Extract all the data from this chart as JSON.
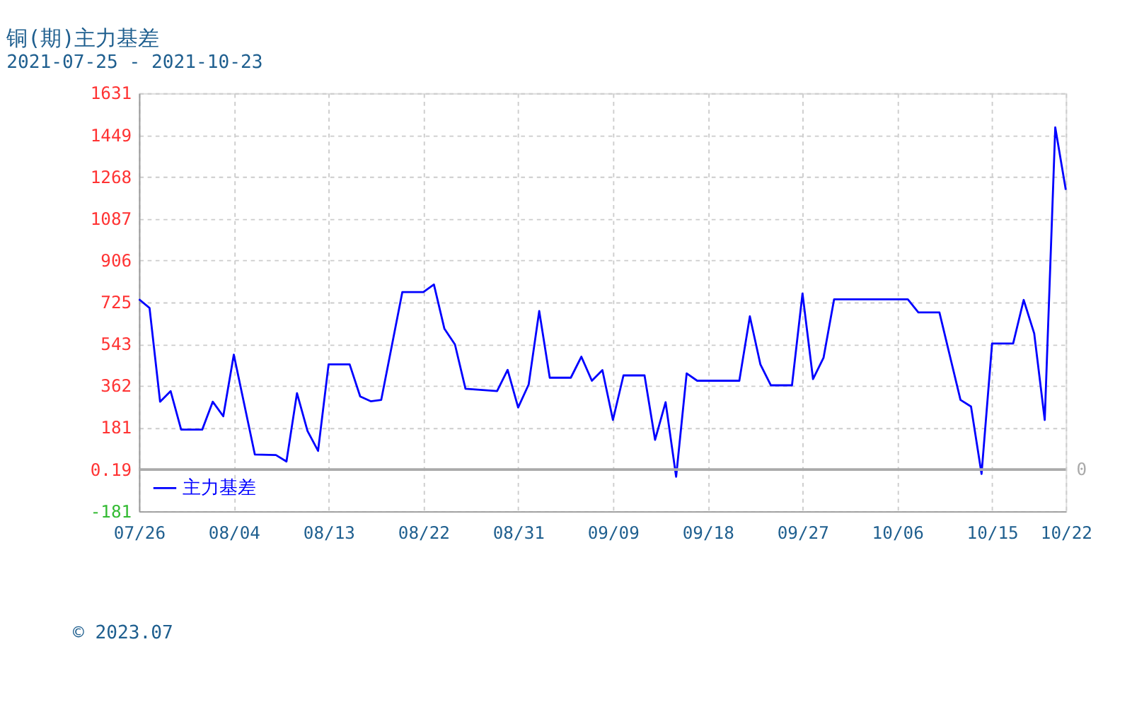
{
  "chart_data": {
    "type": "line",
    "title": "铜(期)主力基差",
    "subtitle": "2021-07-25 - 2021-10-23",
    "x": [
      "2021-07-26",
      "2021-07-27",
      "2021-07-28",
      "2021-07-29",
      "2021-07-30",
      "2021-08-01",
      "2021-08-02",
      "2021-08-03",
      "2021-08-04",
      "2021-08-06",
      "2021-08-08",
      "2021-08-09",
      "2021-08-10",
      "2021-08-11",
      "2021-08-12",
      "2021-08-13",
      "2021-08-15",
      "2021-08-16",
      "2021-08-17",
      "2021-08-18",
      "2021-08-20",
      "2021-08-22",
      "2021-08-23",
      "2021-08-24",
      "2021-08-25",
      "2021-08-26",
      "2021-08-29",
      "2021-08-30",
      "2021-08-31",
      "2021-09-01",
      "2021-09-02",
      "2021-09-03",
      "2021-09-05",
      "2021-09-06",
      "2021-09-07",
      "2021-09-08",
      "2021-09-09",
      "2021-09-10",
      "2021-09-12",
      "2021-09-13",
      "2021-09-14",
      "2021-09-15",
      "2021-09-16",
      "2021-09-17",
      "2021-09-21",
      "2021-09-22",
      "2021-09-23",
      "2021-09-24",
      "2021-09-26",
      "2021-09-27",
      "2021-09-28",
      "2021-09-29",
      "2021-09-30",
      "2021-10-07",
      "2021-10-08",
      "2021-10-10",
      "2021-10-12",
      "2021-10-13",
      "2021-10-14",
      "2021-10-15",
      "2021-10-17",
      "2021-10-18",
      "2021-10-19",
      "2021-10-20",
      "2021-10-21",
      "2021-10-22"
    ],
    "series": [
      {
        "name": "主力基差",
        "color": "#0000ff",
        "values": [
          738,
          700,
          294,
          340,
          173,
          173,
          294,
          231,
          498,
          65,
          63,
          35,
          331,
          167,
          81,
          456,
          456,
          317,
          296,
          302,
          769,
          769,
          802,
          610,
          542,
          350,
          340,
          432,
          269,
          369,
          687,
          398,
          398,
          489,
          385,
          431,
          215,
          408,
          408,
          129,
          292,
          -31,
          417,
          385,
          385,
          664,
          456,
          365,
          365,
          763,
          392,
          485,
          738,
          738,
          681,
          681,
          302,
          273,
          -19,
          546,
          546,
          735,
          590,
          215,
          1483,
          1212
        ]
      }
    ],
    "xlim": [
      "2021-07-26",
      "2021-10-22"
    ],
    "xticks": [
      {
        "value": "2021-07-26",
        "label": "07/26"
      },
      {
        "value": "2021-08-04",
        "label": "08/04"
      },
      {
        "value": "2021-08-13",
        "label": "08/13"
      },
      {
        "value": "2021-08-22",
        "label": "08/22"
      },
      {
        "value": "2021-08-31",
        "label": "08/31"
      },
      {
        "value": "2021-09-09",
        "label": "09/09"
      },
      {
        "value": "2021-09-18",
        "label": "09/18"
      },
      {
        "value": "2021-09-27",
        "label": "09/27"
      },
      {
        "value": "2021-10-06",
        "label": "10/06"
      },
      {
        "value": "2021-10-15",
        "label": "10/15"
      },
      {
        "value": "2021-10-22",
        "label": "10/22"
      }
    ],
    "ylim": [
      -181,
      1631
    ],
    "yticks": [
      -181,
      0.19,
      181,
      362,
      543,
      725,
      906,
      1087,
      1268,
      1449,
      1631
    ],
    "ref_lines": [
      {
        "axis": "y",
        "value": 0,
        "label": "0",
        "color": "#aaaaaa"
      }
    ],
    "grid": true,
    "legend": "bottom left",
    "marker": "none",
    "line_style": "solid",
    "annotations": [
      "© 2023.07"
    ]
  }
}
